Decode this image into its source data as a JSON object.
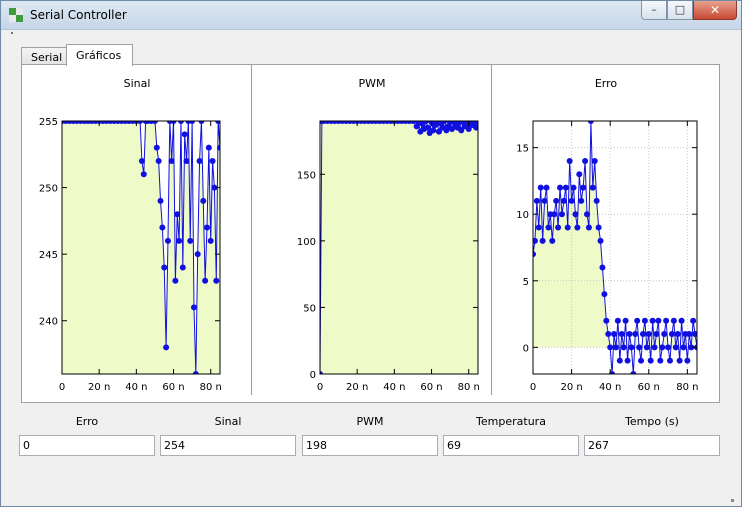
{
  "window": {
    "title": "Serial Controller",
    "icon": "checkerboard-icon"
  },
  "tabs": [
    {
      "label": "Serial",
      "active": false
    },
    {
      "label": "Gráficos",
      "active": true
    }
  ],
  "colors": {
    "plot_bg": "#eefac8",
    "series": "#1010e0",
    "grid": "#c8c8c8"
  },
  "chart_data": [
    {
      "type": "line",
      "title": "Sinal",
      "xlim": [
        0,
        85
      ],
      "ylim": [
        236,
        255
      ],
      "x_ticks": [
        "0",
        "20 n",
        "40 n",
        "60 n",
        "80 n"
      ],
      "x_tick_values": [
        0,
        20,
        40,
        60,
        80
      ],
      "y_ticks": [
        255,
        250,
        245,
        240
      ],
      "grid": false,
      "x": [
        0,
        2,
        4,
        6,
        8,
        10,
        12,
        14,
        16,
        18,
        20,
        22,
        24,
        26,
        28,
        30,
        32,
        34,
        36,
        38,
        40,
        42,
        43,
        44,
        45,
        46,
        48,
        50,
        51,
        52,
        53,
        54,
        55,
        56,
        57,
        58,
        59,
        60,
        61,
        62,
        63,
        64,
        65,
        66,
        67,
        68,
        69,
        70,
        71,
        72,
        73,
        74,
        75,
        76,
        77,
        78,
        79,
        80,
        81,
        82,
        83,
        84,
        85
      ],
      "y": [
        255,
        255,
        255,
        255,
        255,
        255,
        255,
        255,
        255,
        255,
        255,
        255,
        255,
        255,
        255,
        255,
        255,
        255,
        255,
        255,
        255,
        255,
        252,
        251,
        255,
        255,
        255,
        255,
        253,
        252,
        249,
        247,
        244,
        238,
        246,
        255,
        252,
        255,
        243,
        248,
        246,
        255,
        244,
        254,
        252,
        255,
        246,
        255,
        241,
        236,
        245,
        252,
        255,
        249,
        243,
        247,
        253,
        246,
        252,
        250,
        243,
        255,
        253
      ]
    },
    {
      "type": "line",
      "title": "PWM",
      "xlim": [
        0,
        85
      ],
      "ylim": [
        0,
        190
      ],
      "x_ticks": [
        "0",
        "20 n",
        "40 n",
        "60 n",
        "80 n"
      ],
      "x_tick_values": [
        0,
        20,
        40,
        60,
        80
      ],
      "y_ticks": [
        150,
        100,
        50,
        0
      ],
      "grid": false,
      "x": [
        0,
        1,
        2,
        4,
        6,
        8,
        10,
        12,
        14,
        16,
        18,
        20,
        22,
        24,
        26,
        28,
        30,
        32,
        34,
        36,
        38,
        40,
        42,
        44,
        46,
        48,
        50,
        52,
        53,
        54,
        55,
        56,
        57,
        58,
        59,
        60,
        61,
        62,
        63,
        64,
        65,
        66,
        67,
        68,
        69,
        70,
        71,
        72,
        73,
        74,
        75,
        76,
        77,
        78,
        79,
        80,
        81,
        82,
        83,
        84,
        85
      ],
      "y": [
        0,
        190,
        190,
        190,
        190,
        190,
        190,
        190,
        190,
        190,
        190,
        190,
        190,
        190,
        190,
        190,
        190,
        190,
        190,
        190,
        190,
        190,
        190,
        190,
        190,
        190,
        190,
        186,
        189,
        182,
        188,
        184,
        190,
        185,
        181,
        189,
        183,
        187,
        190,
        182,
        188,
        185,
        190,
        183,
        186,
        189,
        184,
        190,
        187,
        185,
        189,
        183,
        190,
        186,
        188,
        184,
        190,
        187,
        189,
        185,
        190
      ]
    },
    {
      "type": "line",
      "title": "Erro",
      "xlim": [
        0,
        85
      ],
      "ylim": [
        -2,
        17
      ],
      "x_ticks": [
        "0",
        "20 n",
        "40 n",
        "60 n",
        "80 n"
      ],
      "x_tick_values": [
        0,
        20,
        40,
        60,
        80
      ],
      "y_ticks": [
        15,
        10,
        5,
        0
      ],
      "grid": true,
      "x": [
        0,
        1,
        2,
        3,
        4,
        5,
        6,
        7,
        8,
        9,
        10,
        11,
        12,
        13,
        14,
        15,
        16,
        17,
        18,
        19,
        20,
        21,
        22,
        23,
        24,
        25,
        26,
        27,
        28,
        29,
        30,
        31,
        32,
        33,
        34,
        35,
        36,
        37,
        38,
        39,
        40,
        41,
        42,
        43,
        44,
        45,
        46,
        47,
        48,
        49,
        50,
        51,
        52,
        53,
        54,
        55,
        56,
        57,
        58,
        59,
        60,
        61,
        62,
        63,
        64,
        65,
        66,
        67,
        68,
        69,
        70,
        71,
        72,
        73,
        74,
        75,
        76,
        77,
        78,
        79,
        80,
        81,
        82,
        83,
        84,
        85
      ],
      "y": [
        7,
        8,
        11,
        9,
        12,
        8,
        11,
        12,
        9,
        10,
        8,
        10,
        11,
        9,
        12,
        10,
        11,
        12,
        9,
        14,
        11,
        12,
        10,
        9,
        13,
        11,
        12,
        14,
        10,
        9,
        17,
        12,
        14,
        11,
        9,
        8,
        6,
        4,
        2,
        1,
        0,
        -2,
        1,
        0,
        2,
        -1,
        1,
        0,
        2,
        -1,
        1,
        0,
        -2,
        1,
        2,
        0,
        -1,
        1,
        2,
        0,
        1,
        -1,
        2,
        0,
        1,
        2,
        -1,
        0,
        1,
        2,
        0,
        -1,
        1,
        2,
        0,
        1,
        -1,
        2,
        0,
        1,
        -1,
        1,
        0,
        2,
        1,
        0
      ]
    }
  ],
  "fields": [
    {
      "label": "Erro",
      "value": "0"
    },
    {
      "label": "Sinal",
      "value": "254"
    },
    {
      "label": "PWM",
      "value": "198"
    },
    {
      "label": "Temperatura",
      "value": "69"
    },
    {
      "label": "Tempo (s)",
      "value": "267"
    }
  ]
}
